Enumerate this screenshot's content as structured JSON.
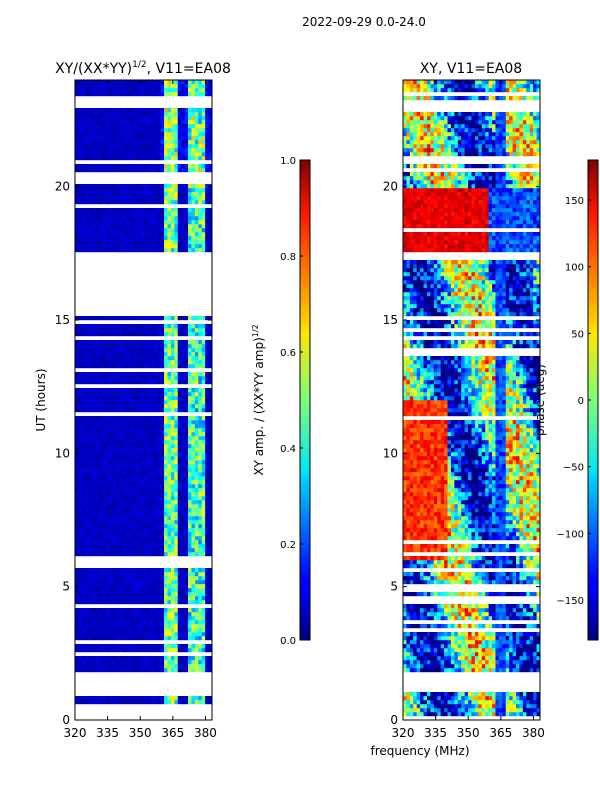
{
  "figure": {
    "suptitle": "2022-09-29 0.0-24.0",
    "xlabel": "frequency (MHz)"
  },
  "chart_data": [
    {
      "type": "heatmap",
      "title_main": "XY/(XX*YY)",
      "title_sup": "1/2",
      "title_rest": ", V11=EA08",
      "xlabel": "frequency (MHz)",
      "ylabel": "UT (hours)",
      "xlim": [
        320,
        383
      ],
      "ylim": [
        0,
        24
      ],
      "xticks": [
        320,
        335,
        350,
        365,
        380
      ],
      "yticks": [
        0,
        5,
        10,
        15,
        20
      ],
      "colorbar": {
        "label_main": "XY amp. / (XX*YY amp)",
        "label_sup": "1/2",
        "range": [
          0.0,
          1.0
        ],
        "ticks": [
          "0.0",
          "0.2",
          "0.4",
          "0.6",
          "0.8",
          "1.0"
        ],
        "tick_values": [
          0.0,
          0.2,
          0.4,
          0.6,
          0.8,
          1.0
        ]
      },
      "data_gaps_ut_hours": [
        [
          0.0,
          0.4
        ],
        [
          0.95,
          1.8
        ],
        [
          5.7,
          6.2
        ],
        [
          15.2,
          17.4
        ],
        [
          20.1,
          20.6
        ],
        [
          22.9,
          23.4
        ]
      ]
    },
    {
      "type": "heatmap",
      "title": "XY, V11=EA08",
      "xlabel": "frequency (MHz)",
      "ylabel": "",
      "xlim": [
        320,
        383
      ],
      "ylim": [
        0,
        24
      ],
      "xticks": [
        320,
        335,
        350,
        365,
        380
      ],
      "yticks": [
        0,
        5,
        10,
        15,
        20
      ],
      "colorbar": {
        "label": "phase (deg)",
        "range": [
          -180,
          180
        ],
        "ticks": [
          "−150",
          "−100",
          "−50",
          "0",
          "50",
          "100",
          "150"
        ],
        "tick_values": [
          -150,
          -100,
          -50,
          0,
          50,
          100,
          150
        ]
      },
      "data_gaps_ut_hours": [
        [
          0.0,
          0.2
        ],
        [
          1.1,
          1.8
        ],
        [
          15.0,
          15.2
        ],
        [
          17.3,
          17.5
        ],
        [
          20.8,
          21.2
        ],
        [
          22.8,
          23.2
        ]
      ]
    }
  ]
}
